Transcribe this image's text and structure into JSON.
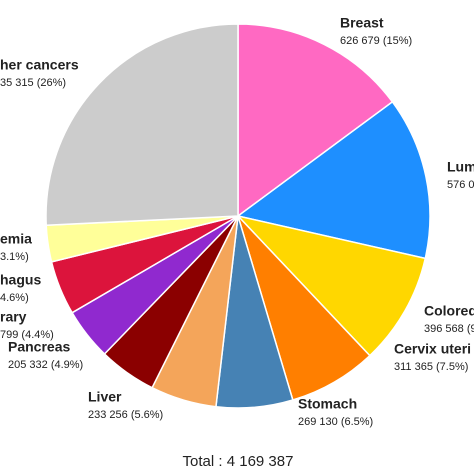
{
  "chart_data": {
    "type": "pie",
    "total_label": "Total : 4 169 387",
    "start_angle": 0,
    "direction": "clockwise",
    "categories": [
      "Breast",
      "Lum",
      "Colored",
      "Cervix uteri",
      "Stomach",
      "Liver",
      "Pancreas",
      "rary",
      "hagus",
      "emia",
      "her cancers"
    ],
    "value_labels": [
      "626 679 (15%)",
      "576 0",
      "396 568 (9",
      "311 365 (7.5%)",
      "269 130 (6.5%)",
      "233 256 (5.6%)",
      "205 332 (4.9%)",
      "799 (4.4%)",
      "4.6%)",
      "3.1%)",
      "35 315 (26%)"
    ],
    "values": [
      15,
      13.8,
      9.5,
      7.5,
      6.5,
      5.6,
      4.9,
      4.4,
      4.6,
      3.1,
      26
    ],
    "colors": [
      "#ff69c2",
      "#1e8fff",
      "#ffd700",
      "#ff7f00",
      "#4682b4",
      "#f4a55a",
      "#8b0000",
      "#9029cf",
      "#dc143c",
      "#ffff99",
      "#cccccc"
    ]
  }
}
